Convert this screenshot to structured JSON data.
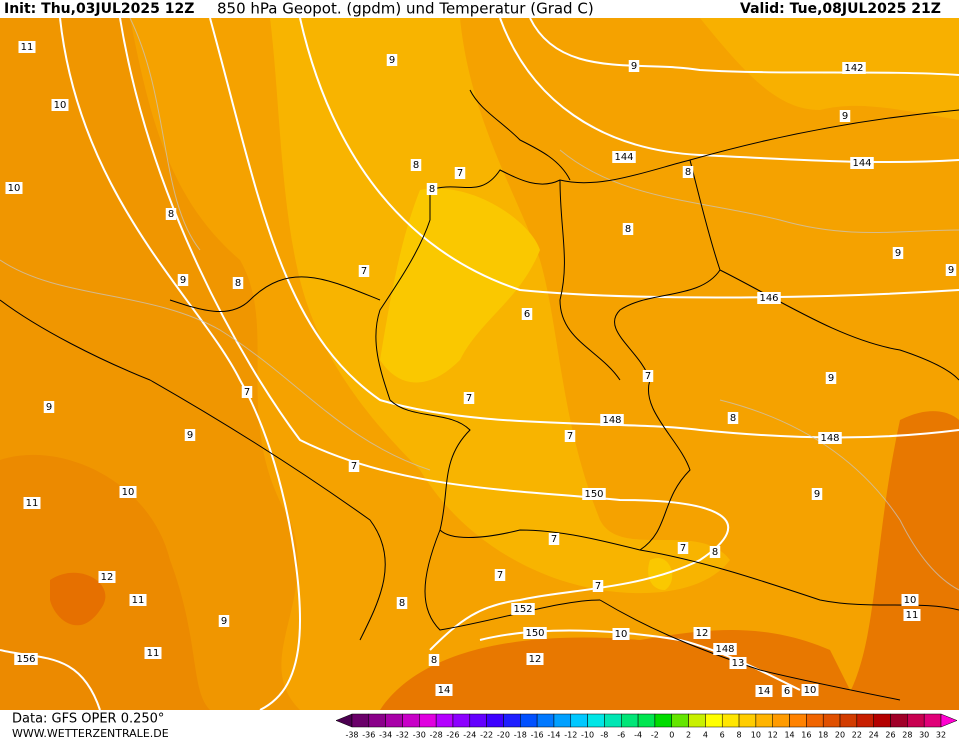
{
  "header": {
    "init": "Init: Thu,03JUL2025 12Z",
    "title": "850 hPa Geopot. (gpdm) und Temperatur (Grad C)",
    "valid": "Valid: Tue,08JUL2025 21Z"
  },
  "footer": {
    "data": "Data: GFS OPER 0.250°",
    "site": "WWW.WETTERZENTRALE.DE"
  },
  "map": {
    "height_labels": [
      142,
      144,
      144,
      146,
      148,
      148,
      150,
      152,
      150,
      156,
      148,
      10
    ],
    "temperature_labels": [
      11,
      10,
      10,
      9,
      9,
      9,
      8,
      7,
      8,
      8,
      8,
      8,
      9,
      8,
      7,
      6,
      9,
      9,
      7,
      9,
      9,
      7,
      7,
      8,
      9,
      7,
      7,
      10,
      11,
      9,
      7,
      7,
      8,
      12,
      7,
      7,
      11,
      8,
      9,
      10,
      11,
      12,
      11,
      12,
      8,
      13,
      14,
      14,
      10,
      6
    ]
  },
  "legend": {
    "labels": [
      -38,
      -36,
      -34,
      -32,
      -30,
      -28,
      -26,
      -24,
      -22,
      -20,
      -18,
      -16,
      -14,
      -12,
      -10,
      -8,
      -6,
      -4,
      -2,
      0,
      2,
      4,
      6,
      8,
      10,
      12,
      14,
      16,
      18,
      20,
      22,
      24,
      26,
      28,
      30,
      32
    ],
    "colors": [
      "#4b0050",
      "#6a006a",
      "#8a008a",
      "#a800a8",
      "#c800c8",
      "#e000e0",
      "#b400ff",
      "#8c00ff",
      "#6400ff",
      "#3c00ff",
      "#1e1eff",
      "#0050ff",
      "#0078ff",
      "#00a0ff",
      "#00c8ff",
      "#00e6e6",
      "#00e6b4",
      "#00e678",
      "#00e650",
      "#00dc00",
      "#64e600",
      "#c8f000",
      "#ffff00",
      "#ffe600",
      "#ffcd00",
      "#ffb400",
      "#ff9b00",
      "#ff8200",
      "#f06400",
      "#e05000",
      "#d23c00",
      "#c81e00",
      "#b40000",
      "#a00028",
      "#c80050",
      "#e00078",
      "#ff00d0"
    ]
  }
}
